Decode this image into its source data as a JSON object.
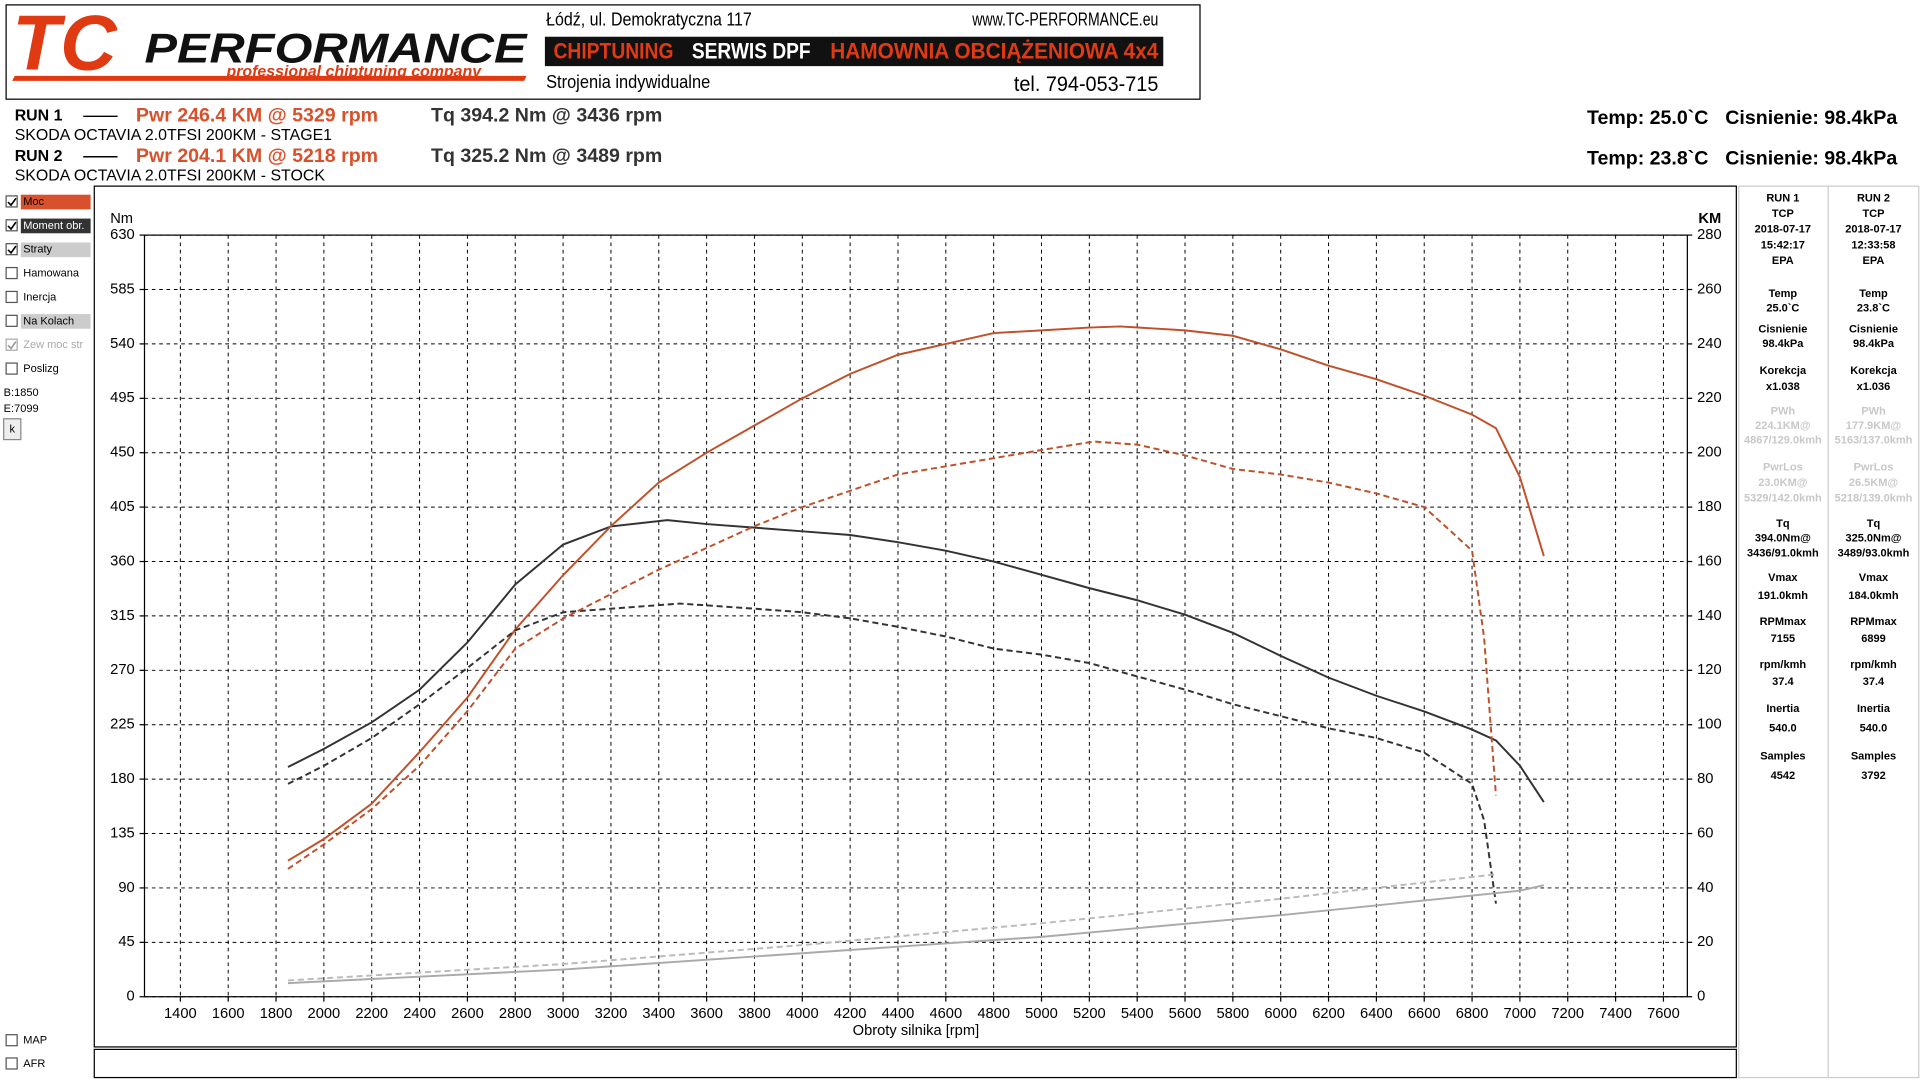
{
  "header": {
    "logo_tc": "TC",
    "logo_performance": "PERFORMANCE",
    "tagline": "professional chiptuning company",
    "address": "Łódź, ul. Demokratyczna 117",
    "website": "www.TC-PERFORMANCE.eu",
    "banner": [
      "CHIPTUNING",
      "SERWIS DPF",
      "HAMOWNIA OBCIĄŻENIOWA 4x4"
    ],
    "tuning": "Strojenia indywidualne",
    "phone": "tel. 794-053-715"
  },
  "runs": [
    {
      "label": "RUN 1",
      "power": "Pwr  246.4 KM @ 5329 rpm",
      "torque": "Tq 394.2 Nm @ 3436 rpm",
      "vehicle": "SKODA OCTAVIA 2.0TFSI 200KM - STAGE1",
      "temp": "Temp: 25.0`C",
      "pressure": "Cisnienie: 98.4kPa"
    },
    {
      "label": "RUN 2",
      "power": "Pwr  204.1 KM @ 5218 rpm",
      "torque": "Tq 325.2 Nm @ 3489 rpm",
      "vehicle": "SKODA OCTAVIA 2.0TFSI 200KM - STOCK",
      "temp": "Temp: 23.8`C",
      "pressure": "Cisnienie: 98.4kPa"
    }
  ],
  "options": [
    {
      "label": "Moc",
      "checked": true,
      "color": "#d9512c"
    },
    {
      "label": "Moment obr.",
      "checked": true,
      "color": "#333333"
    },
    {
      "label": "Straty",
      "checked": true,
      "color": "#cccccc"
    },
    {
      "label": "Hamowana",
      "checked": false
    },
    {
      "label": "Inercja",
      "checked": false
    },
    {
      "label": "Na Kolach",
      "checked": false,
      "color": "#cccccc"
    },
    {
      "label": "Zew moc str",
      "checked": true,
      "disabled": true
    },
    {
      "label": "Poslizg",
      "checked": false
    }
  ],
  "range": [
    "B:1850",
    "E:7099"
  ],
  "button": "k",
  "extras": [
    {
      "label": "MAP",
      "checked": false
    },
    {
      "label": "AFR",
      "checked": false
    }
  ],
  "panel": [
    [
      [
        "RUN 1",
        "TCP",
        "2018-07-17",
        "15:42:17",
        "EPA"
      ],
      [
        "Temp",
        "25.0`C"
      ],
      [
        "Cisnienie",
        "98.4kPa"
      ],
      [
        "Korekcja",
        "x1.038"
      ],
      [
        "PWh",
        "224.1KM@",
        "4867/129.0kmh"
      ],
      [
        "PwrLos",
        "23.0KM@",
        "5329/142.0kmh"
      ],
      [
        "Tq",
        "394.0Nm@",
        "3436/91.0kmh"
      ],
      [
        "Vmax",
        "191.0kmh"
      ],
      [
        "RPMmax",
        "7155"
      ],
      [
        "rpm/kmh",
        "37.4"
      ],
      [
        "Inertia",
        "540.0"
      ],
      [
        "Samples",
        "4542"
      ]
    ],
    [
      [
        "RUN 2",
        "TCP",
        "2018-07-17",
        "12:33:58",
        "EPA"
      ],
      [
        "Temp",
        "23.8`C"
      ],
      [
        "Cisnienie",
        "98.4kPa"
      ],
      [
        "Korekcja",
        "x1.036"
      ],
      [
        "PWh",
        "177.9KM@",
        "5163/137.0kmh"
      ],
      [
        "PwrLos",
        "26.5KM@",
        "5218/139.0kmh"
      ],
      [
        "Tq",
        "325.0Nm@",
        "3489/93.0kmh"
      ],
      [
        "Vmax",
        "184.0kmh"
      ],
      [
        "RPMmax",
        "6899"
      ],
      [
        "rpm/kmh",
        "37.4"
      ],
      [
        "Inertia",
        "540.0"
      ],
      [
        "Samples",
        "3792"
      ]
    ]
  ],
  "chart_data": {
    "type": "line",
    "xlabel": "Obroty silnika [rpm]",
    "ylabel": "Nm",
    "y2label": "KM",
    "xlim": [
      1250,
      7700
    ],
    "xticks": [
      1400,
      1600,
      1800,
      2000,
      2200,
      2400,
      2600,
      2800,
      3000,
      3200,
      3400,
      3600,
      3800,
      4000,
      4200,
      4400,
      4600,
      4800,
      5000,
      5200,
      5400,
      5600,
      5800,
      6000,
      6200,
      6400,
      6600,
      6800,
      7000,
      7200,
      7400,
      7600
    ],
    "ylim": [
      0,
      630
    ],
    "yticks": [
      0,
      45,
      90,
      135,
      180,
      225,
      270,
      315,
      360,
      405,
      450,
      495,
      540,
      585,
      630
    ],
    "y2lim": [
      0,
      280
    ],
    "y2ticks": [
      0,
      20,
      40,
      60,
      80,
      100,
      120,
      140,
      160,
      180,
      200,
      220,
      240,
      260,
      280
    ],
    "grid": true,
    "series": [
      {
        "color": "#333333",
        "style": "solid",
        "x": [
          1850,
          2000,
          2200,
          2400,
          2600,
          2800,
          3000,
          3200,
          3436,
          3600,
          3800,
          4000,
          4200,
          4400,
          4600,
          4800,
          5000,
          5200,
          5400,
          5600,
          5800,
          6000,
          6200,
          6400,
          6600,
          6800,
          6900,
          7000,
          7100
        ],
        "values": [
          190,
          205,
          227,
          254,
          293,
          341,
          374,
          389,
          394.2,
          391,
          388,
          385,
          382,
          376,
          369,
          360,
          349,
          338,
          328,
          316,
          301,
          282,
          264,
          249,
          236,
          221,
          212,
          191,
          161
        ]
      },
      {
        "color": "#c0502a",
        "style": "solid",
        "axis": "y2",
        "x": [
          1850,
          2000,
          2200,
          2400,
          2600,
          2800,
          3000,
          3200,
          3400,
          3600,
          3800,
          4000,
          4200,
          4400,
          4600,
          4800,
          5000,
          5200,
          5329,
          5600,
          5800,
          6000,
          6200,
          6400,
          6600,
          6800,
          6900,
          7000,
          7100
        ],
        "values": [
          50,
          58,
          71,
          90,
          110,
          135,
          155,
          173,
          189,
          200,
          210,
          220,
          229,
          236,
          240,
          244,
          245,
          246,
          246.4,
          245,
          243,
          238,
          232,
          227,
          221,
          214,
          209,
          191,
          162
        ]
      },
      {
        "color": "#333333",
        "style": "dashed",
        "x": [
          1850,
          2000,
          2200,
          2400,
          2600,
          2800,
          3000,
          3200,
          3489,
          3800,
          4000,
          4200,
          4400,
          4600,
          4800,
          5000,
          5200,
          5400,
          5600,
          5800,
          6000,
          6200,
          6400,
          6600,
          6800,
          6850,
          6900
        ],
        "values": [
          176,
          191,
          214,
          242,
          272,
          303,
          318,
          321,
          325.2,
          321,
          318,
          313,
          306,
          298,
          288,
          283,
          276,
          265,
          254,
          242,
          232,
          222,
          214,
          202,
          176,
          146,
          77
        ]
      },
      {
        "color": "#c0502a",
        "style": "dashed",
        "axis": "y2",
        "x": [
          1850,
          2000,
          2200,
          2400,
          2600,
          2800,
          3000,
          3200,
          3400,
          3600,
          3800,
          4000,
          4200,
          4400,
          4600,
          4800,
          5000,
          5218,
          5400,
          5600,
          5800,
          6000,
          6200,
          6400,
          6600,
          6800,
          6850,
          6900
        ],
        "values": [
          47,
          56,
          69,
          85,
          105,
          128,
          139,
          148,
          157,
          165,
          173,
          180,
          186,
          192,
          195,
          198,
          201,
          204.1,
          203,
          199,
          194,
          192,
          189,
          185,
          180,
          164,
          132,
          74
        ]
      },
      {
        "color": "#aaaaaa",
        "style": "solid",
        "axis": "y2",
        "x": [
          1850,
          3000,
          4000,
          5000,
          6000,
          7000,
          7100
        ],
        "values": [
          5,
          10,
          16,
          22,
          30,
          39,
          41
        ]
      },
      {
        "color": "#bbbbbb",
        "style": "dashed",
        "axis": "y2",
        "x": [
          1850,
          3000,
          4000,
          5000,
          6000,
          6900
        ],
        "values": [
          6,
          12,
          19,
          27,
          36,
          45
        ]
      }
    ]
  }
}
